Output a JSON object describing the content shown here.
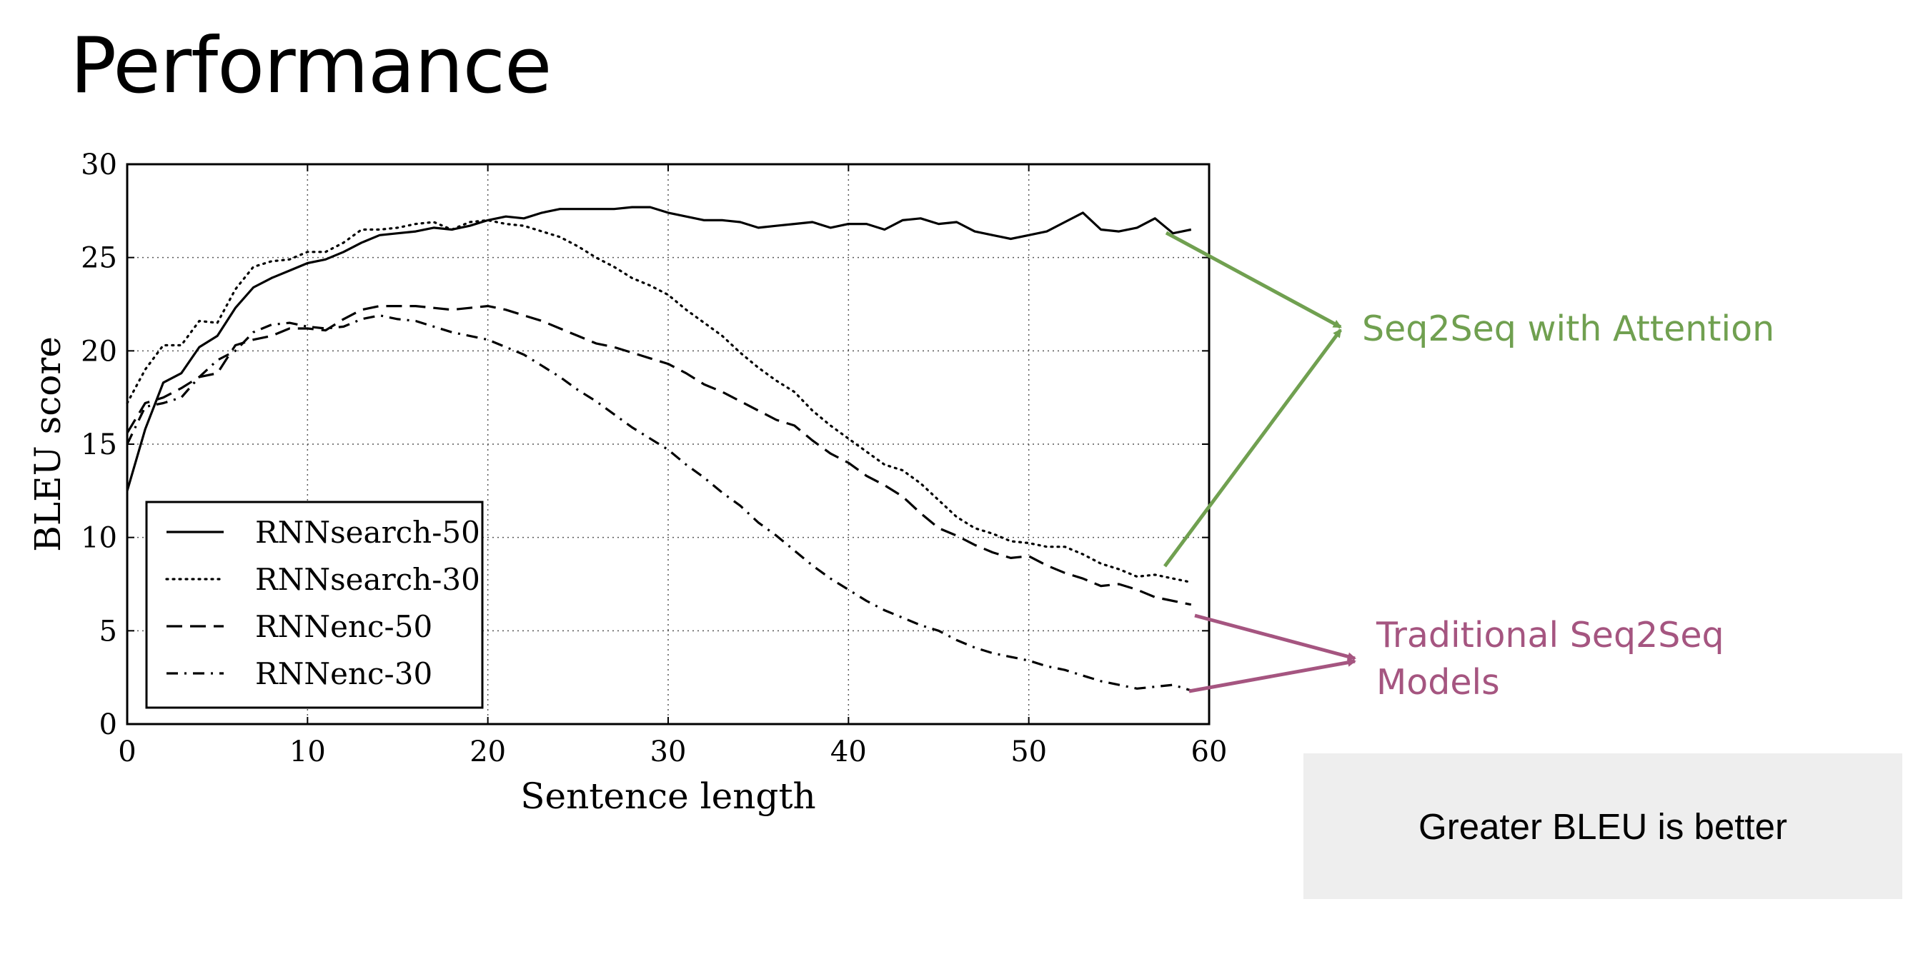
{
  "slide": {
    "title": "Performance",
    "note": "Greater BLEU is better"
  },
  "annotations": [
    {
      "text": "Seq2Seq with Attention",
      "color": "#70a050"
    },
    {
      "text": "Traditional Seq2Seq Models",
      "color": "#a55580"
    }
  ],
  "chart_data": {
    "type": "line",
    "title": "",
    "xlabel": "Sentence length",
    "ylabel": "BLEU score",
    "xlim": [
      0,
      60
    ],
    "ylim": [
      0,
      30
    ],
    "xticks": [
      0,
      10,
      20,
      30,
      40,
      50,
      60
    ],
    "yticks": [
      0,
      5,
      10,
      15,
      20,
      25,
      30
    ],
    "grid": true,
    "legend_position": "lower-left",
    "series": [
      {
        "name": "RNNsearch-50",
        "style": "solid",
        "x": [
          0,
          1,
          2,
          3,
          4,
          5,
          6,
          7,
          8,
          9,
          10,
          11,
          12,
          13,
          14,
          15,
          16,
          17,
          18,
          19,
          20,
          21,
          22,
          23,
          24,
          25,
          26,
          27,
          28,
          29,
          30,
          31,
          32,
          33,
          34,
          35,
          36,
          37,
          38,
          39,
          40,
          41,
          42,
          43,
          44,
          45,
          46,
          47,
          48,
          49,
          50,
          51,
          52,
          53,
          54,
          55,
          56,
          57,
          58,
          59
        ],
        "y": [
          12.5,
          15.8,
          18.3,
          18.8,
          20.2,
          20.8,
          22.3,
          23.4,
          23.9,
          24.3,
          24.7,
          24.9,
          25.3,
          25.8,
          26.2,
          26.3,
          26.4,
          26.6,
          26.5,
          26.7,
          27.0,
          27.2,
          27.1,
          27.4,
          27.6,
          27.6,
          27.6,
          27.6,
          27.7,
          27.7,
          27.4,
          27.2,
          27.0,
          27.0,
          26.9,
          26.6,
          26.7,
          26.8,
          26.9,
          26.6,
          26.8,
          26.8,
          26.5,
          27.0,
          27.1,
          26.8,
          26.9,
          26.4,
          26.2,
          26.0,
          26.2,
          26.4,
          26.9,
          27.4,
          26.5,
          26.4,
          26.6,
          27.1,
          26.3,
          26.5
        ]
      },
      {
        "name": "RNNsearch-30",
        "style": "dotted",
        "x": [
          0,
          1,
          2,
          3,
          4,
          5,
          6,
          7,
          8,
          9,
          10,
          11,
          12,
          13,
          14,
          15,
          16,
          17,
          18,
          19,
          20,
          21,
          22,
          23,
          24,
          25,
          26,
          27,
          28,
          29,
          30,
          31,
          32,
          33,
          34,
          35,
          36,
          37,
          38,
          39,
          40,
          41,
          42,
          43,
          44,
          45,
          46,
          47,
          48,
          49,
          50,
          51,
          52,
          53,
          54,
          55,
          56,
          57,
          58,
          59
        ],
        "y": [
          17.2,
          19.0,
          20.3,
          20.3,
          21.6,
          21.5,
          23.3,
          24.5,
          24.8,
          24.9,
          25.3,
          25.3,
          25.8,
          26.5,
          26.5,
          26.6,
          26.8,
          26.9,
          26.5,
          26.9,
          27.0,
          26.8,
          26.7,
          26.4,
          26.1,
          25.6,
          25.0,
          24.5,
          23.9,
          23.5,
          23.0,
          22.2,
          21.5,
          20.8,
          19.9,
          19.1,
          18.4,
          17.8,
          16.8,
          16.0,
          15.3,
          14.6,
          13.9,
          13.6,
          12.9,
          12.0,
          11.1,
          10.5,
          10.2,
          9.8,
          9.7,
          9.5,
          9.5,
          9.1,
          8.6,
          8.3,
          7.9,
          8.0,
          7.8,
          7.6
        ]
      },
      {
        "name": "RNNenc-50",
        "style": "dashed",
        "x": [
          0,
          1,
          2,
          3,
          4,
          5,
          6,
          7,
          8,
          9,
          10,
          11,
          12,
          13,
          14,
          15,
          16,
          17,
          18,
          19,
          20,
          21,
          22,
          23,
          24,
          25,
          26,
          27,
          28,
          29,
          30,
          31,
          32,
          33,
          34,
          35,
          36,
          37,
          38,
          39,
          40,
          41,
          42,
          43,
          44,
          45,
          46,
          47,
          48,
          49,
          50,
          51,
          52,
          53,
          54,
          55,
          56,
          57,
          58,
          59
        ],
        "y": [
          15.6,
          17.2,
          17.5,
          18.0,
          18.6,
          18.8,
          20.3,
          20.6,
          20.8,
          21.2,
          21.2,
          21.1,
          21.7,
          22.2,
          22.4,
          22.4,
          22.4,
          22.3,
          22.2,
          22.3,
          22.4,
          22.2,
          21.9,
          21.6,
          21.2,
          20.8,
          20.4,
          20.2,
          19.9,
          19.6,
          19.3,
          18.8,
          18.2,
          17.8,
          17.3,
          16.8,
          16.3,
          16.0,
          15.2,
          14.5,
          14.0,
          13.3,
          12.8,
          12.2,
          11.3,
          10.5,
          10.1,
          9.6,
          9.2,
          8.9,
          9.0,
          8.5,
          8.1,
          7.8,
          7.4,
          7.5,
          7.2,
          6.8,
          6.6,
          6.4
        ]
      },
      {
        "name": "RNNenc-30",
        "style": "dashdot",
        "x": [
          0,
          1,
          2,
          3,
          4,
          5,
          6,
          7,
          8,
          9,
          10,
          11,
          12,
          13,
          14,
          15,
          16,
          17,
          18,
          19,
          20,
          21,
          22,
          23,
          24,
          25,
          26,
          27,
          28,
          29,
          30,
          31,
          32,
          33,
          34,
          35,
          36,
          37,
          38,
          39,
          40,
          41,
          42,
          43,
          44,
          45,
          46,
          47,
          48,
          49,
          50,
          51,
          52,
          53,
          54,
          55,
          56,
          57,
          58,
          59
        ],
        "y": [
          15.0,
          17.0,
          17.2,
          17.5,
          18.6,
          19.5,
          20.0,
          21.0,
          21.4,
          21.5,
          21.3,
          21.2,
          21.3,
          21.7,
          21.9,
          21.7,
          21.6,
          21.3,
          21.0,
          20.8,
          20.6,
          20.2,
          19.8,
          19.2,
          18.6,
          17.9,
          17.3,
          16.6,
          15.9,
          15.3,
          14.7,
          13.9,
          13.2,
          12.4,
          11.7,
          10.8,
          10.1,
          9.3,
          8.5,
          7.8,
          7.2,
          6.6,
          6.1,
          5.7,
          5.3,
          5.0,
          4.5,
          4.1,
          3.8,
          3.6,
          3.4,
          3.1,
          2.9,
          2.6,
          2.3,
          2.1,
          1.9,
          2.0,
          2.1,
          1.8
        ]
      }
    ]
  }
}
